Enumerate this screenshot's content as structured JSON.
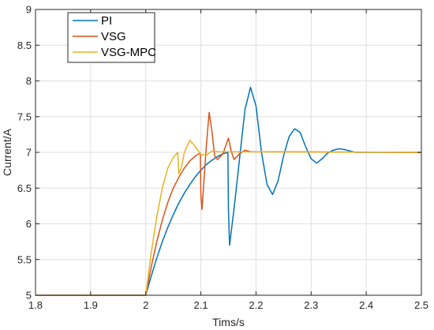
{
  "chart_data": {
    "type": "line",
    "title": "",
    "xlabel": "Tims/s",
    "ylabel": "Current/A",
    "xlim": [
      1.8,
      2.5
    ],
    "ylim": [
      5,
      9
    ],
    "xticks": [
      1.8,
      1.9,
      2,
      2.1,
      2.2,
      2.3,
      2.4,
      2.5
    ],
    "xtick_labels": [
      "1.8",
      "1.9",
      "2",
      "2.1",
      "2.2",
      "2.3",
      "2.4",
      "2.5"
    ],
    "yticks": [
      5,
      5.5,
      6,
      6.5,
      7,
      7.5,
      8,
      8.5,
      9
    ],
    "ytick_labels": [
      "5",
      "5.5",
      "6",
      "6.5",
      "7",
      "7.5",
      "8",
      "8.5",
      "9"
    ],
    "grid": true,
    "legend_position": "top-left",
    "series": [
      {
        "name": "PI",
        "color": "#0072bd",
        "points": [
          [
            1.8,
            5
          ],
          [
            2.0,
            5
          ],
          [
            2.01,
            5.27
          ],
          [
            2.02,
            5.52
          ],
          [
            2.03,
            5.75
          ],
          [
            2.04,
            5.95
          ],
          [
            2.05,
            6.13
          ],
          [
            2.06,
            6.29
          ],
          [
            2.07,
            6.43
          ],
          [
            2.08,
            6.55
          ],
          [
            2.09,
            6.66
          ],
          [
            2.1,
            6.75
          ],
          [
            2.11,
            6.83
          ],
          [
            2.12,
            6.89
          ],
          [
            2.13,
            6.94
          ],
          [
            2.14,
            6.98
          ],
          [
            2.149,
            7.0
          ],
          [
            2.15,
            6.2
          ],
          [
            2.152,
            5.7
          ],
          [
            2.16,
            6.2
          ],
          [
            2.17,
            6.9
          ],
          [
            2.18,
            7.6
          ],
          [
            2.19,
            7.91
          ],
          [
            2.2,
            7.65
          ],
          [
            2.21,
            7.0
          ],
          [
            2.22,
            6.55
          ],
          [
            2.23,
            6.41
          ],
          [
            2.24,
            6.6
          ],
          [
            2.25,
            6.95
          ],
          [
            2.26,
            7.22
          ],
          [
            2.27,
            7.33
          ],
          [
            2.28,
            7.28
          ],
          [
            2.29,
            7.08
          ],
          [
            2.3,
            6.91
          ],
          [
            2.31,
            6.85
          ],
          [
            2.32,
            6.91
          ],
          [
            2.33,
            6.99
          ],
          [
            2.34,
            7.03
          ],
          [
            2.35,
            7.05
          ],
          [
            2.36,
            7.04
          ],
          [
            2.37,
            7.02
          ],
          [
            2.38,
            7.0
          ],
          [
            2.5,
            7.0
          ]
        ]
      },
      {
        "name": "VSG",
        "color": "#d95319",
        "points": [
          [
            1.8,
            5
          ],
          [
            2.0,
            5
          ],
          [
            2.01,
            5.4
          ],
          [
            2.02,
            5.75
          ],
          [
            2.03,
            6.05
          ],
          [
            2.04,
            6.3
          ],
          [
            2.05,
            6.5
          ],
          [
            2.06,
            6.65
          ],
          [
            2.07,
            6.78
          ],
          [
            2.08,
            6.88
          ],
          [
            2.09,
            6.95
          ],
          [
            2.099,
            6.99
          ],
          [
            2.1,
            6.4
          ],
          [
            2.102,
            6.2
          ],
          [
            2.11,
            7.1
          ],
          [
            2.115,
            7.56
          ],
          [
            2.12,
            7.3
          ],
          [
            2.125,
            6.95
          ],
          [
            2.13,
            6.9
          ],
          [
            2.14,
            6.98
          ],
          [
            2.15,
            7.2
          ],
          [
            2.155,
            7.02
          ],
          [
            2.16,
            6.9
          ],
          [
            2.17,
            6.98
          ],
          [
            2.18,
            7.03
          ],
          [
            2.19,
            7.01
          ],
          [
            2.5,
            7.0
          ]
        ]
      },
      {
        "name": "VSG-MPC",
        "color": "#edb120",
        "points": [
          [
            1.8,
            5
          ],
          [
            2.0,
            5
          ],
          [
            2.01,
            5.6
          ],
          [
            2.02,
            6.1
          ],
          [
            2.03,
            6.5
          ],
          [
            2.04,
            6.78
          ],
          [
            2.05,
            6.93
          ],
          [
            2.058,
            7.0
          ],
          [
            2.06,
            6.7
          ],
          [
            2.065,
            6.8
          ],
          [
            2.07,
            7.0
          ],
          [
            2.08,
            7.17
          ],
          [
            2.09,
            7.08
          ],
          [
            2.1,
            6.97
          ],
          [
            2.11,
            6.96
          ],
          [
            2.12,
            7.02
          ],
          [
            2.13,
            7.01
          ],
          [
            2.5,
            7.0
          ]
        ]
      }
    ]
  }
}
